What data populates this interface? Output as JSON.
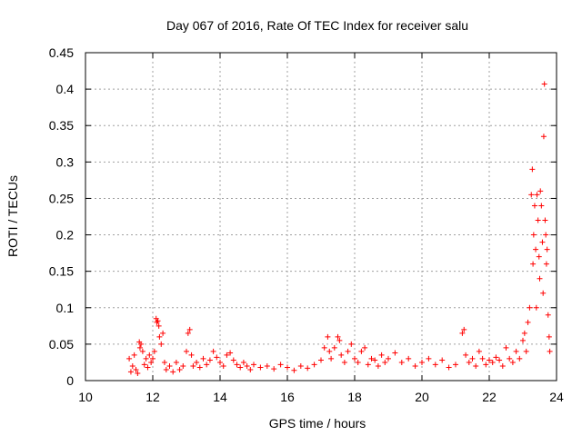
{
  "chart_data": {
    "type": "scatter",
    "title": "Day 067 of 2016, Rate Of TEC Index for receiver salu",
    "xlabel": "GPS time / hours",
    "ylabel": "ROTI / TECUs",
    "xlim": [
      10,
      24
    ],
    "ylim": [
      0,
      0.45
    ],
    "xticks": [
      10,
      12,
      14,
      16,
      18,
      20,
      22,
      24
    ],
    "yticks": [
      0,
      0.05,
      0.1,
      0.15,
      0.2,
      0.25,
      0.3,
      0.35,
      0.4,
      0.45
    ],
    "grid": true,
    "marker": "+",
    "series": [
      {
        "name": "ROTI",
        "color": "#ff0000",
        "points": [
          [
            11.3,
            0.03
          ],
          [
            11.35,
            0.012
          ],
          [
            11.4,
            0.02
          ],
          [
            11.45,
            0.035
          ],
          [
            11.5,
            0.015
          ],
          [
            11.55,
            0.01
          ],
          [
            11.6,
            0.053
          ],
          [
            11.62,
            0.045
          ],
          [
            11.65,
            0.05
          ],
          [
            11.7,
            0.04
          ],
          [
            11.75,
            0.022
          ],
          [
            11.8,
            0.03
          ],
          [
            11.85,
            0.018
          ],
          [
            11.9,
            0.035
          ],
          [
            11.95,
            0.025
          ],
          [
            12.0,
            0.03
          ],
          [
            12.05,
            0.04
          ],
          [
            12.1,
            0.085
          ],
          [
            12.12,
            0.08
          ],
          [
            12.15,
            0.082
          ],
          [
            12.18,
            0.075
          ],
          [
            12.2,
            0.06
          ],
          [
            12.25,
            0.05
          ],
          [
            12.3,
            0.065
          ],
          [
            12.35,
            0.025
          ],
          [
            12.4,
            0.015
          ],
          [
            12.5,
            0.02
          ],
          [
            12.6,
            0.012
          ],
          [
            12.7,
            0.025
          ],
          [
            12.8,
            0.015
          ],
          [
            12.9,
            0.02
          ],
          [
            13.0,
            0.04
          ],
          [
            13.05,
            0.065
          ],
          [
            13.1,
            0.07
          ],
          [
            13.15,
            0.035
          ],
          [
            13.2,
            0.02
          ],
          [
            13.3,
            0.025
          ],
          [
            13.4,
            0.018
          ],
          [
            13.5,
            0.03
          ],
          [
            13.6,
            0.022
          ],
          [
            13.7,
            0.028
          ],
          [
            13.8,
            0.04
          ],
          [
            13.9,
            0.032
          ],
          [
            14.0,
            0.025
          ],
          [
            14.1,
            0.02
          ],
          [
            14.2,
            0.035
          ],
          [
            14.3,
            0.038
          ],
          [
            14.4,
            0.028
          ],
          [
            14.5,
            0.022
          ],
          [
            14.6,
            0.018
          ],
          [
            14.7,
            0.025
          ],
          [
            14.8,
            0.02
          ],
          [
            14.9,
            0.015
          ],
          [
            15.0,
            0.022
          ],
          [
            15.2,
            0.018
          ],
          [
            15.4,
            0.02
          ],
          [
            15.6,
            0.016
          ],
          [
            15.8,
            0.022
          ],
          [
            16.0,
            0.018
          ],
          [
            16.2,
            0.014
          ],
          [
            16.4,
            0.02
          ],
          [
            16.6,
            0.017
          ],
          [
            16.8,
            0.022
          ],
          [
            17.0,
            0.028
          ],
          [
            17.1,
            0.045
          ],
          [
            17.2,
            0.06
          ],
          [
            17.25,
            0.04
          ],
          [
            17.3,
            0.03
          ],
          [
            17.4,
            0.045
          ],
          [
            17.5,
            0.06
          ],
          [
            17.55,
            0.055
          ],
          [
            17.6,
            0.035
          ],
          [
            17.7,
            0.025
          ],
          [
            17.8,
            0.04
          ],
          [
            17.9,
            0.05
          ],
          [
            18.0,
            0.03
          ],
          [
            18.1,
            0.025
          ],
          [
            18.2,
            0.04
          ],
          [
            18.3,
            0.045
          ],
          [
            18.4,
            0.022
          ],
          [
            18.5,
            0.03
          ],
          [
            18.6,
            0.028
          ],
          [
            18.7,
            0.02
          ],
          [
            18.8,
            0.035
          ],
          [
            18.9,
            0.025
          ],
          [
            19.0,
            0.03
          ],
          [
            19.2,
            0.038
          ],
          [
            19.4,
            0.025
          ],
          [
            19.6,
            0.03
          ],
          [
            19.8,
            0.02
          ],
          [
            20.0,
            0.025
          ],
          [
            20.2,
            0.03
          ],
          [
            20.4,
            0.022
          ],
          [
            20.6,
            0.028
          ],
          [
            20.8,
            0.018
          ],
          [
            21.0,
            0.022
          ],
          [
            21.2,
            0.065
          ],
          [
            21.25,
            0.07
          ],
          [
            21.3,
            0.035
          ],
          [
            21.4,
            0.025
          ],
          [
            21.5,
            0.03
          ],
          [
            21.6,
            0.02
          ],
          [
            21.7,
            0.04
          ],
          [
            21.8,
            0.03
          ],
          [
            21.9,
            0.022
          ],
          [
            22.0,
            0.028
          ],
          [
            22.1,
            0.025
          ],
          [
            22.2,
            0.032
          ],
          [
            22.3,
            0.028
          ],
          [
            22.4,
            0.02
          ],
          [
            22.5,
            0.045
          ],
          [
            22.6,
            0.03
          ],
          [
            22.7,
            0.025
          ],
          [
            22.8,
            0.04
          ],
          [
            22.9,
            0.03
          ],
          [
            23.0,
            0.055
          ],
          [
            23.05,
            0.065
          ],
          [
            23.1,
            0.04
          ],
          [
            23.15,
            0.08
          ],
          [
            23.2,
            0.1
          ],
          [
            23.25,
            0.255
          ],
          [
            23.28,
            0.29
          ],
          [
            23.3,
            0.16
          ],
          [
            23.32,
            0.2
          ],
          [
            23.35,
            0.24
          ],
          [
            23.38,
            0.18
          ],
          [
            23.4,
            0.1
          ],
          [
            23.42,
            0.255
          ],
          [
            23.45,
            0.22
          ],
          [
            23.48,
            0.17
          ],
          [
            23.5,
            0.14
          ],
          [
            23.52,
            0.26
          ],
          [
            23.55,
            0.24
          ],
          [
            23.58,
            0.19
          ],
          [
            23.6,
            0.12
          ],
          [
            23.62,
            0.335
          ],
          [
            23.64,
            0.407
          ],
          [
            23.66,
            0.22
          ],
          [
            23.68,
            0.2
          ],
          [
            23.7,
            0.16
          ],
          [
            23.72,
            0.18
          ],
          [
            23.75,
            0.09
          ],
          [
            23.78,
            0.06
          ],
          [
            23.8,
            0.04
          ]
        ]
      }
    ]
  }
}
